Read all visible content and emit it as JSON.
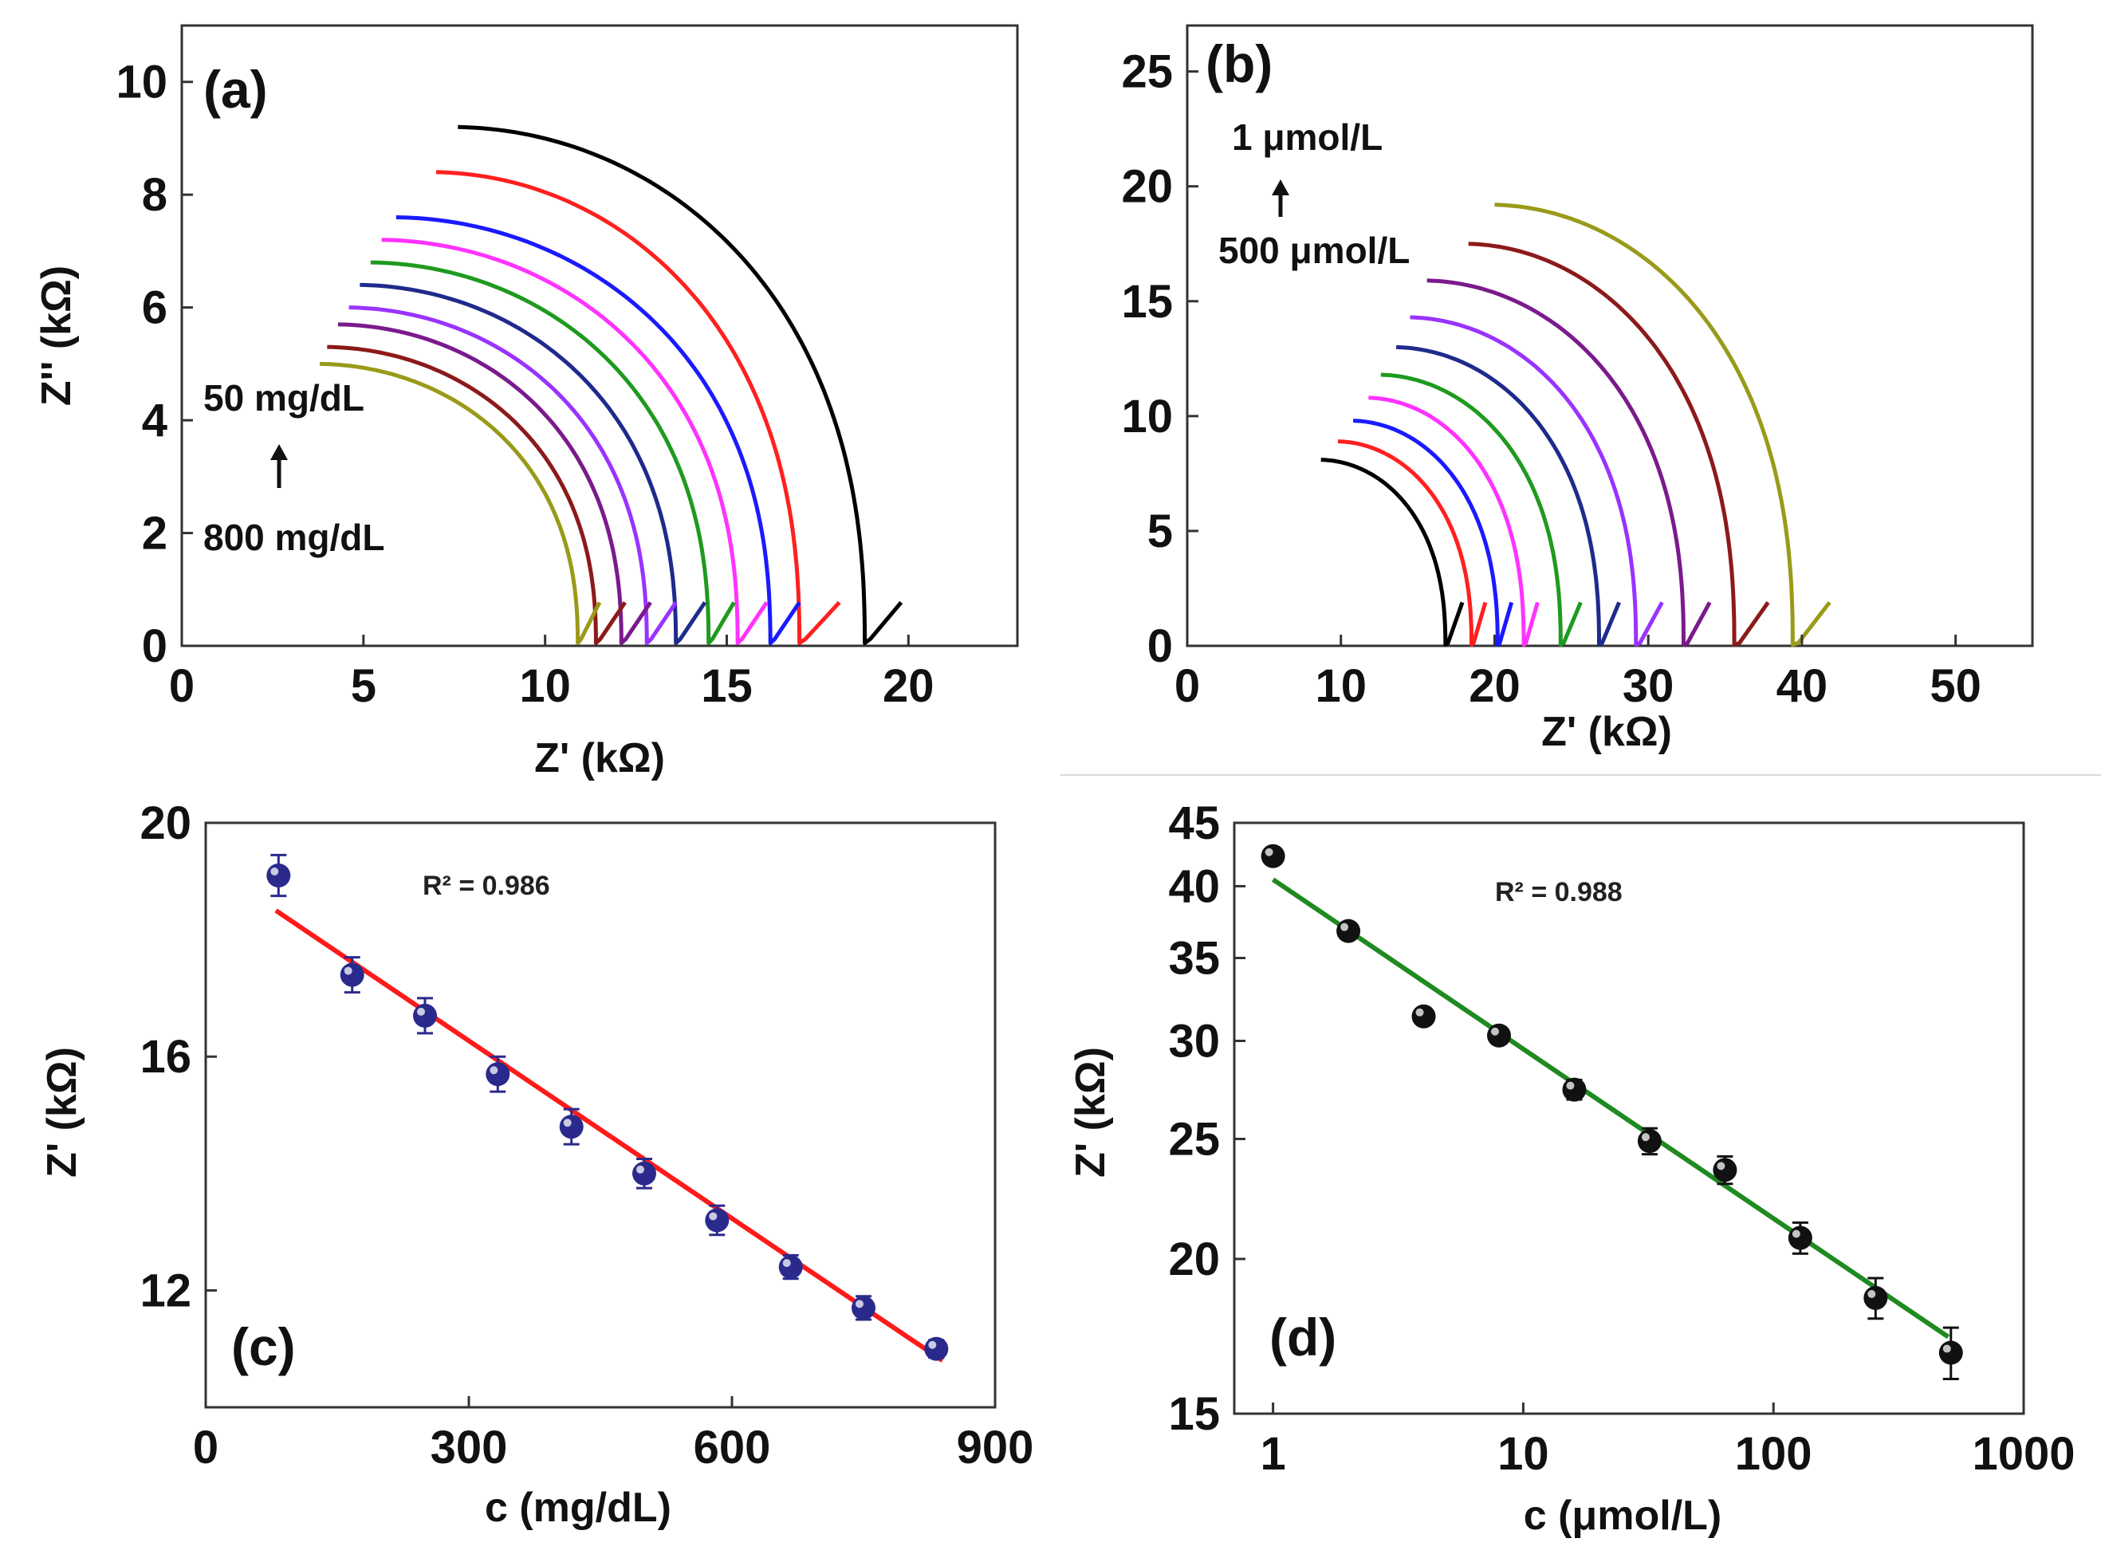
{
  "chart_data": [
    {
      "id": "a",
      "type": "line",
      "panel_label": "(a)",
      "xlabel": "Z' (kΩ)",
      "ylabel": "Z'' (kΩ)",
      "xlim": [
        0,
        23
      ],
      "ylim": [
        0,
        11
      ],
      "xticks": [
        0,
        5,
        10,
        15,
        20
      ],
      "yticks": [
        0,
        2,
        4,
        6,
        8,
        10
      ],
      "annotation_top": "50 mg/dL",
      "annotation_bottom": "800 mg/dL",
      "series": [
        {
          "name": "50 mg/dL",
          "color": "#000000",
          "x0": 7.6,
          "h": 9.2,
          "r_end": 18.8,
          "tail_end": 19.8
        },
        {
          "name": "",
          "color": "#ff2020",
          "x0": 7.0,
          "h": 8.4,
          "r_end": 17.0,
          "tail_end": 18.1
        },
        {
          "name": "",
          "color": "#1a1aff",
          "x0": 5.9,
          "h": 7.6,
          "r_end": 16.2,
          "tail_end": 17.0
        },
        {
          "name": "",
          "color": "#ff33ff",
          "x0": 5.5,
          "h": 7.2,
          "r_end": 15.3,
          "tail_end": 16.1
        },
        {
          "name": "",
          "color": "#1f9a1f",
          "x0": 5.2,
          "h": 6.8,
          "r_end": 14.5,
          "tail_end": 15.2
        },
        {
          "name": "",
          "color": "#1f2a8c",
          "x0": 4.9,
          "h": 6.4,
          "r_end": 13.6,
          "tail_end": 14.4
        },
        {
          "name": "",
          "color": "#9933ff",
          "x0": 4.6,
          "h": 6.0,
          "r_end": 12.8,
          "tail_end": 13.6
        },
        {
          "name": "",
          "color": "#7a1a8c",
          "x0": 4.3,
          "h": 5.7,
          "r_end": 12.1,
          "tail_end": 12.9
        },
        {
          "name": "",
          "color": "#8c1a1a",
          "x0": 4.0,
          "h": 5.3,
          "r_end": 11.4,
          "tail_end": 12.2
        },
        {
          "name": "800 mg/dL",
          "color": "#9a9a1a",
          "x0": 3.8,
          "h": 5.0,
          "r_end": 10.9,
          "tail_end": 11.5
        }
      ]
    },
    {
      "id": "b",
      "type": "line",
      "panel_label": "(b)",
      "xlabel": "Z' (kΩ)",
      "ylabel": "",
      "xlim": [
        0,
        55
      ],
      "ylim": [
        0,
        27
      ],
      "xticks": [
        0,
        10,
        20,
        30,
        40,
        50
      ],
      "yticks": [
        0,
        5,
        10,
        15,
        20,
        25
      ],
      "annotation_top": "1 μmol/L",
      "annotation_bottom": "500 μmol/L",
      "series": [
        {
          "name": "500 μmol/L",
          "color": "#000000",
          "x0": 8.7,
          "h": 8.1,
          "r_end": 16.8,
          "tail_end": 17.9
        },
        {
          "name": "",
          "color": "#ff2020",
          "x0": 9.8,
          "h": 8.9,
          "r_end": 18.5,
          "tail_end": 19.4
        },
        {
          "name": "",
          "color": "#1a1aff",
          "x0": 10.8,
          "h": 9.8,
          "r_end": 20.2,
          "tail_end": 21.1
        },
        {
          "name": "",
          "color": "#ff33ff",
          "x0": 11.8,
          "h": 10.8,
          "r_end": 21.9,
          "tail_end": 22.8
        },
        {
          "name": "",
          "color": "#1f9a1f",
          "x0": 12.6,
          "h": 11.8,
          "r_end": 24.3,
          "tail_end": 25.6
        },
        {
          "name": "",
          "color": "#1f2a8c",
          "x0": 13.6,
          "h": 13.0,
          "r_end": 26.8,
          "tail_end": 28.1
        },
        {
          "name": "",
          "color": "#9933ff",
          "x0": 14.5,
          "h": 14.3,
          "r_end": 29.2,
          "tail_end": 30.9
        },
        {
          "name": "",
          "color": "#7a1a8c",
          "x0": 15.6,
          "h": 15.9,
          "r_end": 32.3,
          "tail_end": 34.0
        },
        {
          "name": "",
          "color": "#8c1a1a",
          "x0": 18.3,
          "h": 17.5,
          "r_end": 35.6,
          "tail_end": 37.8
        },
        {
          "name": "1 μmol/L",
          "color": "#9a9a1a",
          "x0": 20.0,
          "h": 19.2,
          "r_end": 39.4,
          "tail_end": 41.8
        }
      ]
    },
    {
      "id": "c",
      "type": "scatter",
      "panel_label": "(c)",
      "xlabel": "c (mg/dL)",
      "ylabel": "Z' (kΩ)",
      "xlim": [
        0,
        900
      ],
      "ylim": [
        10,
        20
      ],
      "xticks": [
        0,
        300,
        600,
        900
      ],
      "yticks": [
        12,
        16,
        20
      ],
      "r2_label": "R² = 0.986",
      "marker_color": "#2a2a8c",
      "fit_color": "#ff1a1a",
      "fit": {
        "x": [
          80,
          840
        ],
        "y": [
          18.5,
          10.8
        ]
      },
      "x": [
        83,
        167,
        250,
        333,
        417,
        500,
        583,
        667,
        750,
        833
      ],
      "y": [
        19.1,
        17.4,
        16.7,
        15.7,
        14.8,
        14.0,
        13.2,
        12.4,
        11.7,
        11.0
      ],
      "yerr": [
        0.35,
        0.3,
        0.3,
        0.3,
        0.3,
        0.25,
        0.25,
        0.2,
        0.2,
        0.15
      ]
    },
    {
      "id": "d",
      "type": "scatter",
      "panel_label": "(d)",
      "xlabel": "c (μmol/L)",
      "ylabel": "Z' (kΩ)",
      "xscale": "log",
      "yscale": "log",
      "xlim": [
        0.7,
        1000
      ],
      "ylim": [
        15,
        45
      ],
      "xticks": [
        1,
        10,
        100,
        1000
      ],
      "yticks": [
        15,
        20,
        25,
        30,
        35,
        40,
        45
      ],
      "r2_label": "R² = 0.988",
      "marker_color": "#111111",
      "fit_color": "#1f8a1f",
      "fit": {
        "x": [
          1,
          500
        ],
        "y": [
          40.5,
          17.3
        ]
      },
      "x": [
        1,
        2,
        4,
        8,
        16,
        32,
        64,
        128,
        256,
        512
      ],
      "y": [
        42.3,
        36.8,
        31.4,
        30.3,
        27.4,
        24.9,
        23.6,
        20.8,
        18.6,
        16.8
      ],
      "yerr": [
        0.3,
        0.3,
        0.3,
        0.3,
        0.5,
        0.6,
        0.6,
        0.6,
        0.7,
        0.8
      ]
    }
  ]
}
